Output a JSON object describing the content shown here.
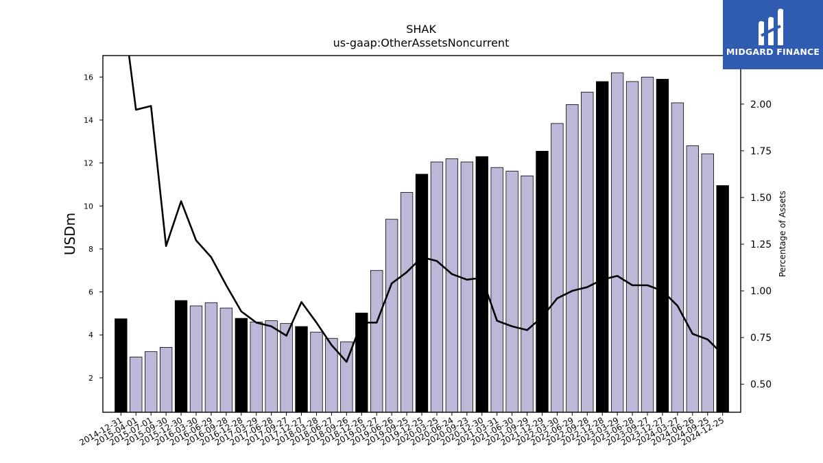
{
  "brand": {
    "name": "MIDGARD FINANCE",
    "bg": "#2f5bb0"
  },
  "chart_data": {
    "type": "bar",
    "title": "SHAK",
    "subtitle": "us-gaap:OtherAssetsNoncurrent",
    "ylabel": "USDm",
    "y2label": "Percentage of Assets",
    "ylim": [
      0.4,
      17.0
    ],
    "y2lim": [
      0.35,
      2.26
    ],
    "yticks": [
      "2",
      "4",
      "6",
      "8",
      "10",
      "12",
      "14",
      "16"
    ],
    "y2ticks": [
      "0.50",
      "0.75",
      "1.00",
      "1.25",
      "1.50",
      "1.75",
      "2.00"
    ],
    "grid": false,
    "colors": {
      "annual": "#000000",
      "quarter": "#bcb8d8",
      "line": "#000000"
    },
    "categories": [
      "2014-12-31",
      "2015-04-01",
      "2015-07-01",
      "2015-09-30",
      "2015-12-30",
      "2016-03-30",
      "2016-06-29",
      "2016-09-28",
      "2016-12-28",
      "2017-03-29",
      "2017-06-28",
      "2017-09-27",
      "2017-12-27",
      "2018-03-28",
      "2018-06-27",
      "2018-09-26",
      "2018-12-26",
      "2019-03-27",
      "2019-06-26",
      "2019-09-25",
      "2019-12-25",
      "2020-03-25",
      "2020-06-24",
      "2020-09-23",
      "2020-12-30",
      "2021-03-31",
      "2021-06-30",
      "2021-09-29",
      "2021-12-29",
      "2022-03-30",
      "2022-06-29",
      "2022-09-28",
      "2022-12-28",
      "2023-03-29",
      "2023-06-28",
      "2023-09-27",
      "2023-12-27",
      "2024-03-27",
      "2024-06-26",
      "2024-09-25",
      "2024-12-25"
    ],
    "series": [
      {
        "kind": "bar",
        "values": [
          4.75,
          2.97,
          3.22,
          3.42,
          5.6,
          5.35,
          5.5,
          5.25,
          4.77,
          4.6,
          4.66,
          4.53,
          4.39,
          4.13,
          3.84,
          3.68,
          5.02,
          7.0,
          9.38,
          10.63,
          11.48,
          12.05,
          12.2,
          12.05,
          12.3,
          11.79,
          11.62,
          11.4,
          12.55,
          13.84,
          14.72,
          15.3,
          15.79,
          16.2,
          15.79,
          16.0,
          15.9,
          14.8,
          12.8,
          12.43,
          10.95
        ],
        "annual": [
          true,
          false,
          false,
          false,
          true,
          false,
          false,
          false,
          true,
          false,
          false,
          false,
          true,
          false,
          false,
          false,
          true,
          false,
          false,
          false,
          true,
          false,
          false,
          false,
          true,
          false,
          false,
          false,
          true,
          false,
          false,
          false,
          true,
          false,
          false,
          false,
          true,
          false,
          false,
          false,
          true
        ]
      },
      {
        "kind": "line",
        "axis": "right",
        "values": [
          2.6,
          1.97,
          1.99,
          1.24,
          1.48,
          1.27,
          1.18,
          1.03,
          0.89,
          0.83,
          0.81,
          0.76,
          0.94,
          0.83,
          0.71,
          0.62,
          0.83,
          0.83,
          1.04,
          1.1,
          1.18,
          1.16,
          1.09,
          1.06,
          1.07,
          0.84,
          0.81,
          0.79,
          0.86,
          0.96,
          1.0,
          1.02,
          1.06,
          1.08,
          1.03,
          1.03,
          1.0,
          0.92,
          0.77,
          0.74,
          0.66
        ]
      }
    ]
  }
}
